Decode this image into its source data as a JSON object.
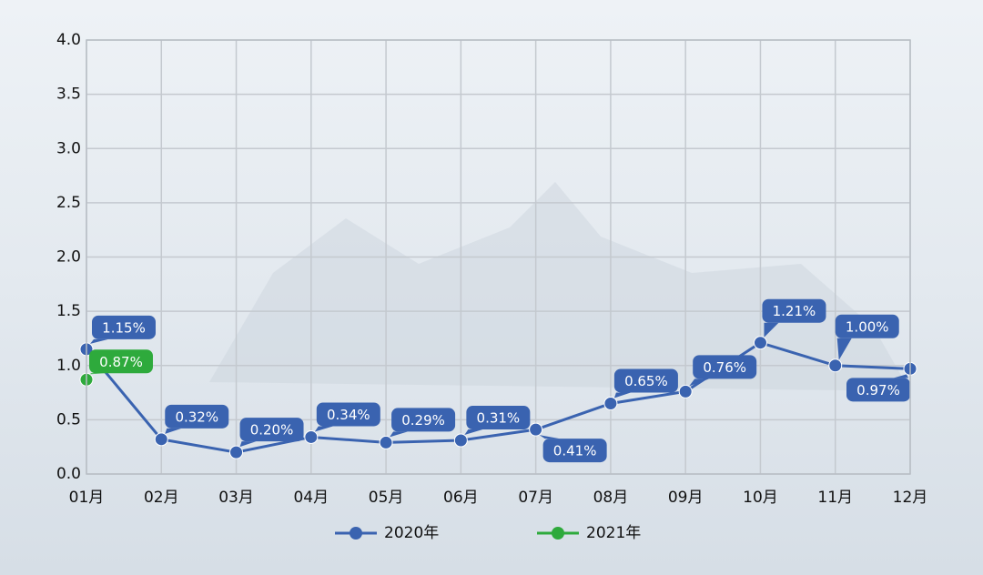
{
  "chart_data": {
    "type": "line",
    "categories": [
      "01月",
      "02月",
      "03月",
      "04月",
      "05月",
      "06月",
      "07月",
      "08月",
      "09月",
      "10月",
      "11月",
      "12月"
    ],
    "series": [
      {
        "name": "2020年",
        "color": "#3a63b0",
        "values": [
          1.15,
          0.32,
          0.2,
          0.34,
          0.29,
          0.31,
          0.41,
          0.65,
          0.76,
          1.21,
          1.0,
          0.97
        ],
        "value_labels": [
          "1.15%",
          "0.32%",
          "0.20%",
          "0.34%",
          "0.29%",
          "0.31%",
          "0.41%",
          "0.65%",
          "0.76%",
          "1.21%",
          "1.00%",
          "0.97%"
        ]
      },
      {
        "name": "2021年",
        "color": "#2eaa3c",
        "values": [
          0.87,
          null,
          null,
          null,
          null,
          null,
          null,
          null,
          null,
          null,
          null,
          null
        ],
        "value_labels": [
          "0.87%",
          null,
          null,
          null,
          null,
          null,
          null,
          null,
          null,
          null,
          null,
          null
        ]
      }
    ],
    "ylim": [
      0,
      4
    ],
    "yticks": [
      {
        "value": 0,
        "label": "0.0"
      },
      0.5,
      {
        "value": 1,
        "label": "1.0"
      },
      1.5,
      {
        "value": 2,
        "label": "2.0"
      },
      2.5,
      {
        "value": 3,
        "label": "3.0"
      },
      3.5,
      {
        "value": 4,
        "label": "4.0"
      }
    ],
    "grid": true,
    "legend": "bottom"
  }
}
